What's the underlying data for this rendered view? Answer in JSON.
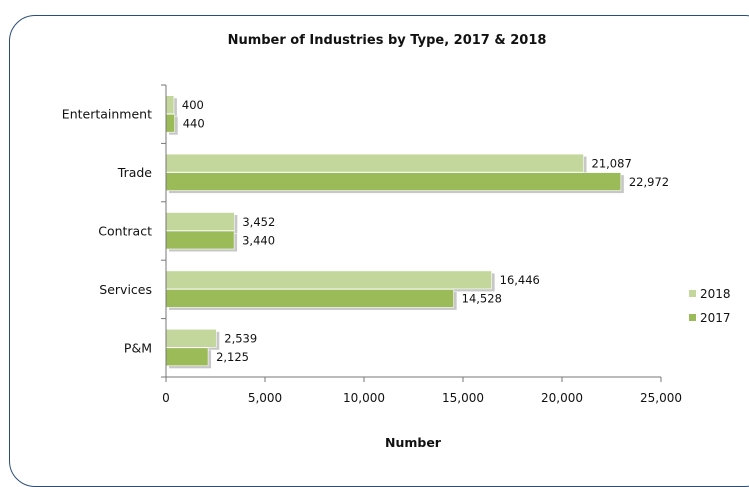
{
  "chart_data": {
    "type": "bar",
    "orientation": "horizontal",
    "title": "Number of Industries by Type, 2017 & 2018",
    "xlabel": "Number",
    "ylabel": "",
    "categories": [
      "Entertainment",
      "Trade",
      "Contract",
      "Services",
      "P&M"
    ],
    "series": [
      {
        "name": "2018",
        "color": "#c3d69b",
        "values": [
          400,
          21087,
          3452,
          16446,
          2539
        ],
        "labels": [
          "400",
          "21,087",
          "3,452",
          "16,446",
          "2,539"
        ]
      },
      {
        "name": "2017",
        "color": "#9bbb59",
        "values": [
          440,
          22972,
          3440,
          14528,
          2125
        ],
        "labels": [
          "440",
          "22,972",
          "3,440",
          "14,528",
          "2,125"
        ]
      }
    ],
    "xlim": [
      0,
      25000
    ],
    "xticks": [
      0,
      5000,
      10000,
      15000,
      20000,
      25000
    ],
    "xtick_labels": [
      "0",
      "5,000",
      "10,000",
      "15,000",
      "20,000",
      "25,000"
    ],
    "legend": {
      "placement": "right",
      "order": [
        "2018",
        "2017"
      ]
    },
    "grid": false
  }
}
